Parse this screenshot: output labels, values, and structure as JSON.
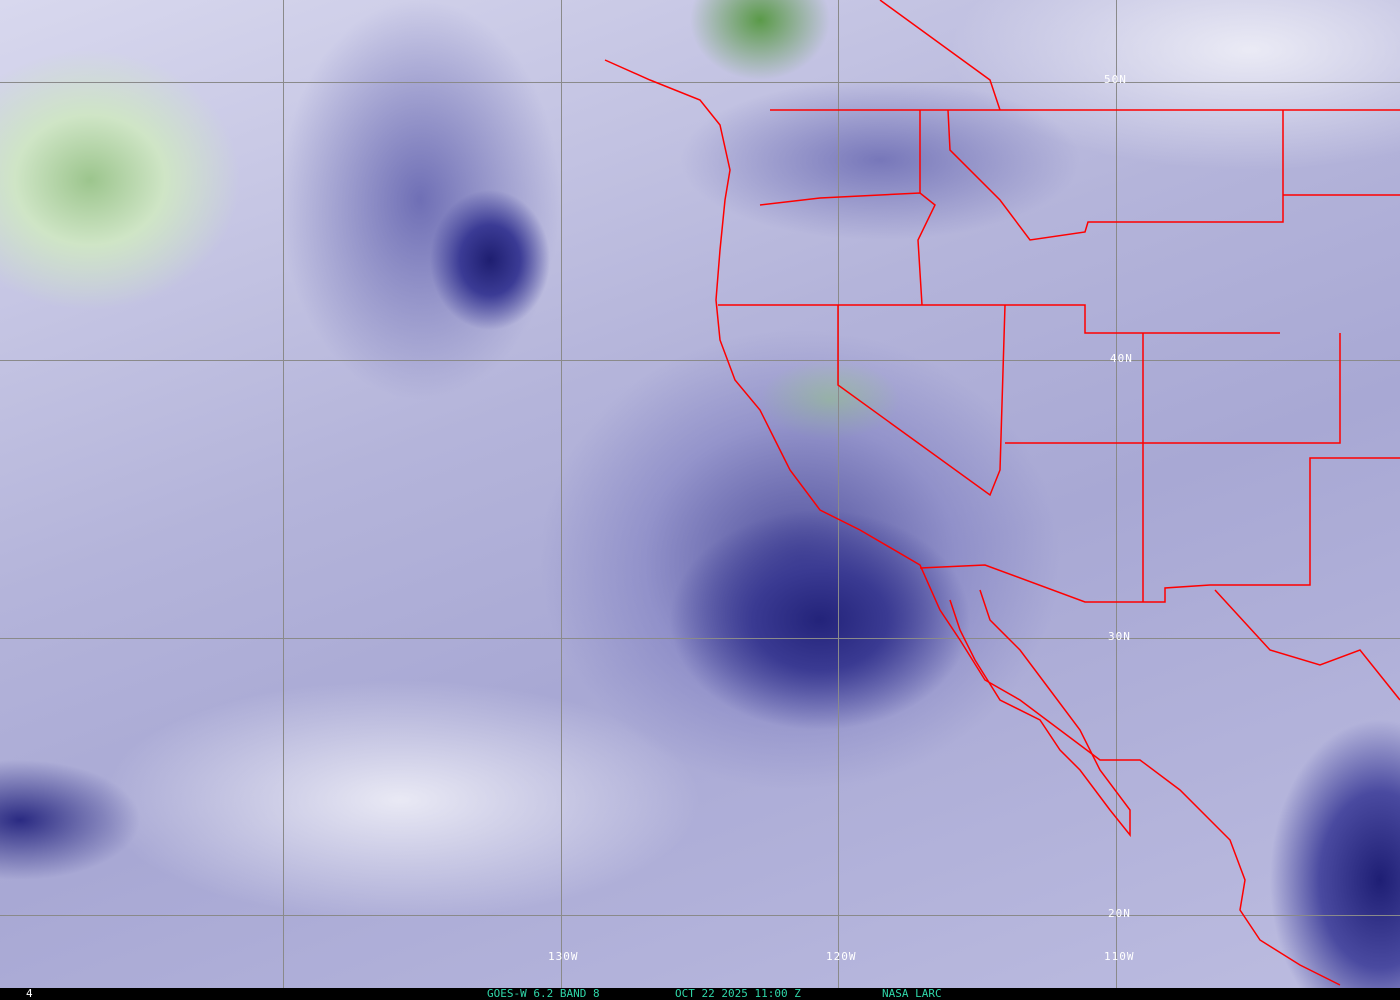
{
  "image": {
    "footer": {
      "frame_number": "4",
      "satellite_band": "GOES-W 6.2 BAND 8",
      "timestamp": "OCT 22 2025 11:00 Z",
      "source": "NASA LARC"
    },
    "latitude_labels": [
      "50N",
      "40N",
      "30N",
      "20N"
    ],
    "longitude_labels": [
      "130W",
      "120W",
      "110W"
    ],
    "colors": {
      "boundaries": "#ff0000",
      "footer_text": "#2fd6a8",
      "grid": "#8a8a8a"
    }
  }
}
